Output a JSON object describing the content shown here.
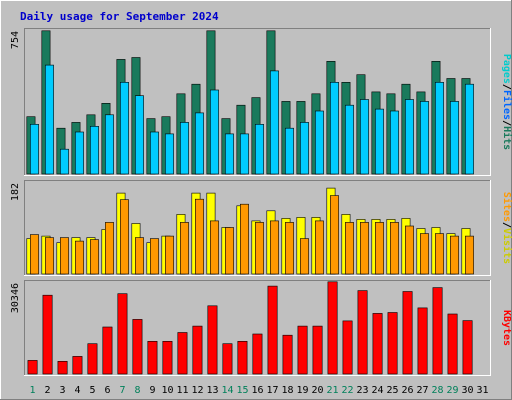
{
  "title": "Daily usage for September 2024",
  "chart_data": [
    {
      "type": "bar",
      "panel": "hits_files_pages",
      "x": [
        "1",
        "2",
        "3",
        "4",
        "5",
        "6",
        "7",
        "8",
        "9",
        "10",
        "11",
        "12",
        "13",
        "14",
        "15",
        "16",
        "17",
        "18",
        "19",
        "20",
        "21",
        "22",
        "23",
        "24",
        "25",
        "26",
        "27",
        "28",
        "29",
        "30",
        "31"
      ],
      "ymax_label": "754",
      "ylim": [
        0,
        754
      ],
      "series": [
        {
          "name": "Hits",
          "color": "#1a7a5c",
          "values": [
            300,
            750,
            240,
            270,
            310,
            370,
            600,
            610,
            290,
            300,
            420,
            470,
            750,
            290,
            360,
            400,
            750,
            380,
            380,
            420,
            590,
            480,
            520,
            430,
            420,
            470,
            430,
            590,
            500,
            500,
            0
          ]
        },
        {
          "name": "Files",
          "color": "#00ccff",
          "values": [
            260,
            570,
            130,
            220,
            250,
            310,
            480,
            410,
            220,
            210,
            270,
            320,
            440,
            210,
            210,
            260,
            540,
            240,
            270,
            330,
            480,
            360,
            390,
            340,
            330,
            390,
            380,
            480,
            380,
            470,
            0
          ]
        },
        {
          "name": "Pages",
          "color": "#00ffff",
          "values": [
            0,
            0,
            0,
            0,
            0,
            0,
            0,
            0,
            0,
            0,
            0,
            0,
            0,
            0,
            0,
            0,
            0,
            0,
            0,
            0,
            0,
            0,
            0,
            0,
            0,
            0,
            0,
            0,
            0,
            0,
            0
          ]
        }
      ],
      "side_labels": [
        "Pages",
        "/",
        "Files",
        "/",
        "Hits"
      ],
      "side_colors": [
        "#00cccc",
        "#000000",
        "#0066ff",
        "#000000",
        "#1a7a5c"
      ]
    },
    {
      "type": "bar",
      "panel": "visits_sites",
      "x": [
        "1",
        "2",
        "3",
        "4",
        "5",
        "6",
        "7",
        "8",
        "9",
        "10",
        "11",
        "12",
        "13",
        "14",
        "15",
        "16",
        "17",
        "18",
        "19",
        "20",
        "21",
        "22",
        "23",
        "24",
        "25",
        "26",
        "27",
        "28",
        "29",
        "30",
        "31"
      ],
      "ymax_label": "182",
      "ylim": [
        0,
        182
      ],
      "series": [
        {
          "name": "Visits",
          "color": "#ffff00",
          "values": [
            70,
            75,
            62,
            72,
            72,
            88,
            160,
            100,
            62,
            75,
            118,
            160,
            160,
            92,
            135,
            105,
            125,
            110,
            112,
            112,
            170,
            118,
            108,
            108,
            108,
            110,
            90,
            92,
            80,
            90,
            0
          ]
        },
        {
          "name": "Sites",
          "color": "#ff9900",
          "values": [
            78,
            72,
            72,
            65,
            68,
            102,
            147,
            72,
            70,
            75,
            102,
            148,
            105,
            92,
            138,
            102,
            105,
            102,
            70,
            105,
            155,
            102,
            102,
            102,
            102,
            95,
            80,
            80,
            75,
            75,
            0
          ]
        }
      ],
      "side_labels": [
        "Sites",
        "/",
        "Visits"
      ],
      "side_colors": [
        "#ff9900",
        "#000000",
        "#cccc00"
      ]
    },
    {
      "type": "bar",
      "panel": "kbytes",
      "x": [
        "1",
        "2",
        "3",
        "4",
        "5",
        "6",
        "7",
        "8",
        "9",
        "10",
        "11",
        "12",
        "13",
        "14",
        "15",
        "16",
        "17",
        "18",
        "19",
        "20",
        "21",
        "22",
        "23",
        "24",
        "25",
        "26",
        "27",
        "28",
        "29",
        "30",
        "31"
      ],
      "ymax_label": "30346",
      "ylim": [
        0,
        30346
      ],
      "series": [
        {
          "name": "KBytes",
          "color": "#ff0000",
          "values": [
            4500,
            26000,
            4200,
            5800,
            10000,
            15500,
            26500,
            18000,
            10800,
            10800,
            13700,
            15800,
            22500,
            10000,
            10800,
            13200,
            29000,
            12800,
            15800,
            15800,
            30400,
            17500,
            27500,
            20000,
            20300,
            27200,
            21800,
            28500,
            19800,
            17600,
            0
          ]
        }
      ],
      "side_labels": [
        "KBytes"
      ],
      "side_colors": [
        "#ff0000"
      ]
    }
  ],
  "x_label_colors": {
    "weekday": "#000000",
    "weekend": "#00805a"
  },
  "weekend_days": [
    "1",
    "7",
    "8",
    "14",
    "15",
    "21",
    "22",
    "28",
    "29"
  ]
}
